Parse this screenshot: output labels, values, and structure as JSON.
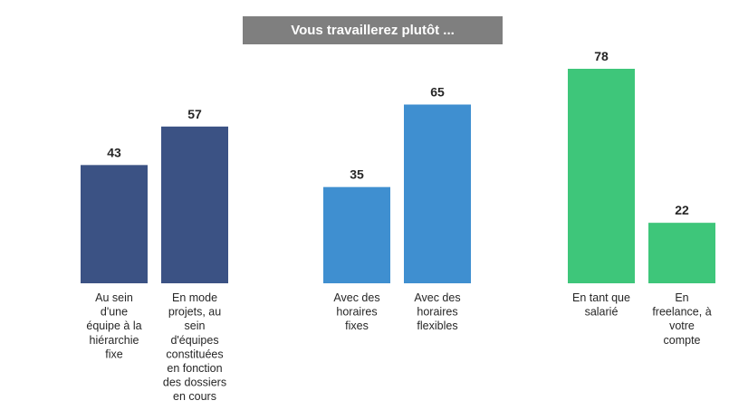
{
  "title": "Vous travaillerez plutôt ...",
  "chart_data": {
    "type": "bar",
    "title": "Vous travaillerez plutôt ...",
    "xlabel": "",
    "ylabel": "",
    "ylim": [
      0,
      78
    ],
    "grid": false,
    "legend": "none",
    "categories": [
      "Au sein d'une équipe à la hiérarchie fixe",
      "En mode projets, au sein d'équipes constituées en fonction des dossiers en cours",
      "Avec des horaires fixes",
      "Avec des horaires flexibles",
      "En tant que salarié",
      "En freelance, à votre compte"
    ],
    "values": [
      43,
      57,
      35,
      65,
      78,
      22
    ],
    "bars": [
      {
        "value": 43,
        "label_lines": [
          "Au sein",
          "d'une",
          "équipe à la",
          "hiérarchie",
          "fixe"
        ],
        "color": "#3b5284"
      },
      {
        "value": 57,
        "label_lines": [
          "En mode",
          "projets, au",
          "sein",
          "d'équipes",
          "constituées",
          "en fonction",
          "des dossiers",
          "en cours"
        ],
        "color": "#3b5284"
      },
      {
        "value": 35,
        "label_lines": [
          "Avec des",
          "horaires",
          "fixes"
        ],
        "color": "#3f8fd0"
      },
      {
        "value": 65,
        "label_lines": [
          "Avec des",
          "horaires",
          "flexibles"
        ],
        "color": "#3f8fd0"
      },
      {
        "value": 78,
        "label_lines": [
          "En tant que",
          "salarié"
        ],
        "color": "#3ec67a"
      },
      {
        "value": 22,
        "label_lines": [
          "En",
          "freelance, à",
          "votre",
          "compte"
        ],
        "color": "#3ec67a"
      }
    ],
    "colors": {
      "group1": "#3b5284",
      "group2": "#3f8fd0",
      "group3": "#3ec67a",
      "title_bg": "#7f7f7f"
    }
  }
}
